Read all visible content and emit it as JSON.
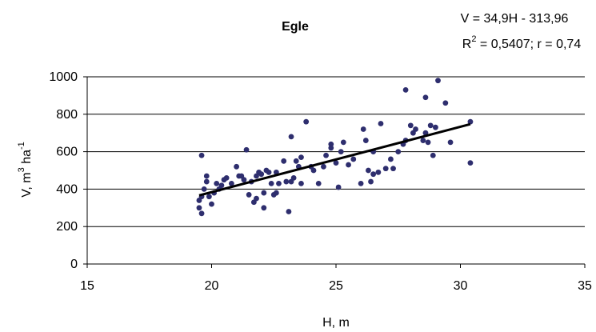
{
  "chart_data": {
    "type": "scatter",
    "title": "Egle",
    "equation": "V = 34,9H - 313,96",
    "r2_prefix": "R",
    "r2_sup": "2",
    "r2_rest": " = 0,5407; r = 0,74",
    "xlabel": "H, m",
    "ylabel_main": "V, m",
    "ylabel_sup1": "3",
    "ylabel_mid": " ha",
    "ylabel_sup2": "-1",
    "xlim": [
      15,
      35
    ],
    "ylim": [
      0,
      1000
    ],
    "xticks": [
      15,
      20,
      25,
      30,
      35
    ],
    "yticks": [
      0,
      200,
      400,
      600,
      800,
      1000
    ],
    "grid": "horizontal",
    "legend": "none",
    "marker_color": "#2e2e6e",
    "trendline": {
      "slope": 34.9,
      "intercept": -313.96,
      "x_range": [
        19.5,
        30.4
      ]
    },
    "points": [
      [
        19.5,
        300
      ],
      [
        19.5,
        340
      ],
      [
        19.6,
        270
      ],
      [
        19.6,
        360
      ],
      [
        19.6,
        580
      ],
      [
        19.7,
        400
      ],
      [
        19.8,
        440
      ],
      [
        19.8,
        470
      ],
      [
        19.9,
        360
      ],
      [
        20.0,
        320
      ],
      [
        20.1,
        380
      ],
      [
        20.2,
        430
      ],
      [
        20.3,
        400
      ],
      [
        20.4,
        420
      ],
      [
        20.5,
        450
      ],
      [
        20.6,
        460
      ],
      [
        20.8,
        430
      ],
      [
        21.0,
        520
      ],
      [
        21.1,
        470
      ],
      [
        21.2,
        470
      ],
      [
        21.3,
        450
      ],
      [
        21.4,
        610
      ],
      [
        21.5,
        370
      ],
      [
        21.6,
        440
      ],
      [
        21.7,
        330
      ],
      [
        21.8,
        470
      ],
      [
        21.8,
        350
      ],
      [
        21.9,
        490
      ],
      [
        22.0,
        480
      ],
      [
        22.1,
        300
      ],
      [
        22.1,
        380
      ],
      [
        22.2,
        500
      ],
      [
        22.3,
        490
      ],
      [
        22.4,
        430
      ],
      [
        22.5,
        370
      ],
      [
        22.6,
        380
      ],
      [
        22.6,
        490
      ],
      [
        22.7,
        430
      ],
      [
        22.9,
        550
      ],
      [
        23.0,
        440
      ],
      [
        23.1,
        280
      ],
      [
        23.2,
        680
      ],
      [
        23.2,
        440
      ],
      [
        23.3,
        460
      ],
      [
        23.4,
        550
      ],
      [
        23.5,
        520
      ],
      [
        23.6,
        570
      ],
      [
        23.6,
        430
      ],
      [
        23.8,
        760
      ],
      [
        24.0,
        520
      ],
      [
        24.1,
        500
      ],
      [
        24.3,
        430
      ],
      [
        24.5,
        520
      ],
      [
        24.6,
        580
      ],
      [
        24.8,
        640
      ],
      [
        24.8,
        620
      ],
      [
        25.0,
        540
      ],
      [
        25.1,
        410
      ],
      [
        25.2,
        600
      ],
      [
        25.3,
        650
      ],
      [
        25.5,
        530
      ],
      [
        25.7,
        560
      ],
      [
        26.0,
        430
      ],
      [
        26.1,
        720
      ],
      [
        26.2,
        660
      ],
      [
        26.3,
        500
      ],
      [
        26.4,
        440
      ],
      [
        26.5,
        480
      ],
      [
        26.5,
        600
      ],
      [
        26.7,
        490
      ],
      [
        26.8,
        750
      ],
      [
        27.0,
        510
      ],
      [
        27.2,
        560
      ],
      [
        27.3,
        510
      ],
      [
        27.5,
        600
      ],
      [
        27.7,
        640
      ],
      [
        27.8,
        660
      ],
      [
        27.8,
        930
      ],
      [
        28.0,
        740
      ],
      [
        28.1,
        700
      ],
      [
        28.2,
        720
      ],
      [
        28.5,
        660
      ],
      [
        28.6,
        890
      ],
      [
        28.6,
        700
      ],
      [
        28.7,
        650
      ],
      [
        28.8,
        740
      ],
      [
        28.9,
        580
      ],
      [
        29.0,
        730
      ],
      [
        29.1,
        980
      ],
      [
        29.4,
        860
      ],
      [
        29.6,
        650
      ],
      [
        30.4,
        760
      ],
      [
        30.4,
        540
      ]
    ]
  }
}
